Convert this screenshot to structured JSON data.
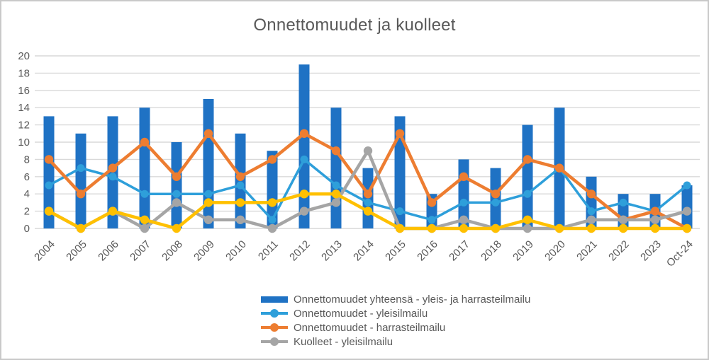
{
  "title": "Onnettomuudet ja kuolleet",
  "colors": {
    "grid": "#d9d9d9",
    "axis_text": "#595959",
    "title_text": "#595959",
    "frame_border": "#c9c9c9",
    "background": "#ffffff"
  },
  "chart_data": {
    "type": "combo bar+line",
    "title": "Onnettomuudet ja kuolleet",
    "xlabel": "",
    "ylabel": "",
    "ylim": [
      0,
      20
    ],
    "yticks": [
      0,
      2,
      4,
      6,
      8,
      10,
      12,
      14,
      16,
      18,
      20
    ],
    "grid": true,
    "legend_position": "bottom",
    "categories": [
      "2004",
      "2005",
      "2006",
      "2007",
      "2008",
      "2009",
      "2010",
      "2011",
      "2012",
      "2013",
      "2014",
      "2015",
      "2016",
      "2017",
      "2018",
      "2019",
      "2020",
      "2021",
      "2022",
      "2023",
      "Oct-24"
    ],
    "series": [
      {
        "key": "onnettomuudet-yhteensa",
        "name": "Onnettomuudet yhteensä - yleis- ja harrasteilmailu",
        "type": "bar",
        "color": "#1f72c4",
        "in_legend": true,
        "values": [
          13,
          11,
          13,
          14,
          10,
          15,
          11,
          9,
          19,
          14,
          7,
          13,
          4,
          8,
          7,
          12,
          14,
          6,
          4,
          4,
          5
        ]
      },
      {
        "key": "onnettomuudet-yleisilmailu",
        "name": "Onnettomuudet - yleisilmailu",
        "type": "line",
        "color": "#2e9fda",
        "in_legend": true,
        "values": [
          5,
          7,
          6,
          4,
          4,
          4,
          5,
          1,
          8,
          5,
          3,
          2,
          1,
          3,
          3,
          4,
          7,
          2,
          3,
          2,
          5
        ]
      },
      {
        "key": "onnettomuudet-harrasteilmailu",
        "name": "Onnettomuudet - harrasteilmailu",
        "type": "line",
        "color": "#ed7d31",
        "in_legend": true,
        "values": [
          8,
          4,
          7,
          10,
          6,
          11,
          6,
          8,
          11,
          9,
          4,
          11,
          3,
          6,
          4,
          8,
          7,
          4,
          1,
          2,
          0
        ]
      },
      {
        "key": "kuolleet-yleisilmailu",
        "name": "Kuolleet - yleisilmailu",
        "type": "line",
        "color": "#a5a5a5",
        "in_legend": true,
        "values": [
          2,
          0,
          2,
          0,
          3,
          1,
          1,
          0,
          2,
          3,
          9,
          0,
          0,
          1,
          0,
          0,
          0,
          1,
          1,
          1,
          2
        ]
      },
      {
        "key": "yellow-series",
        "name": "",
        "type": "line",
        "color": "#ffc000",
        "in_legend": false,
        "values": [
          2,
          0,
          2,
          1,
          0,
          3,
          3,
          3,
          4,
          4,
          2,
          0,
          0,
          0,
          0,
          1,
          0,
          0,
          0,
          0,
          0
        ]
      }
    ]
  }
}
